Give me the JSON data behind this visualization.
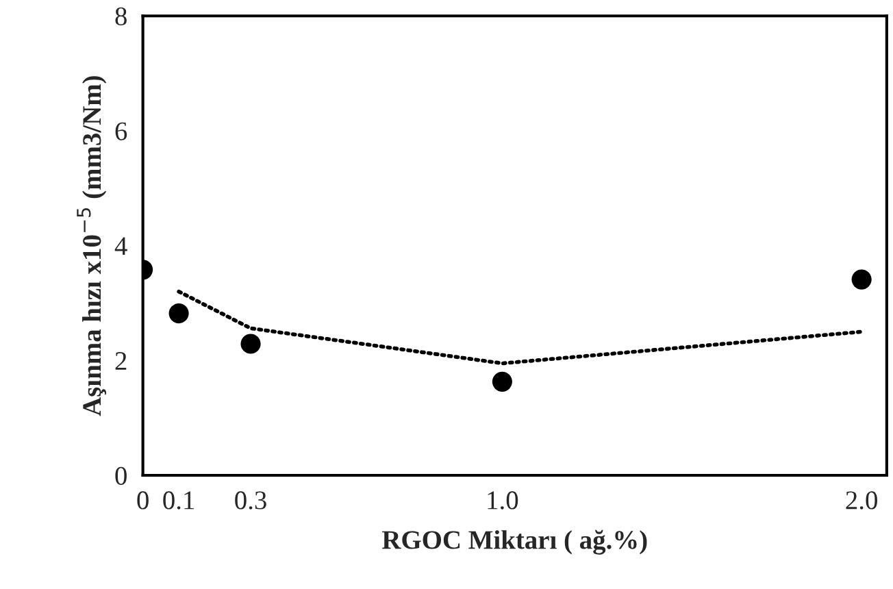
{
  "chart_data": {
    "type": "scatter",
    "xlabel": "RGOC Miktarı ( ağ.%)",
    "ylabel": "Aşınma hızı x10$^{−5}$ (mm3/Nm)",
    "series": [
      {
        "color": "#000000",
        "marker": "circle",
        "x": [
          0,
          0.1,
          0.3,
          1.0,
          2.0
        ],
        "values": [
          3.58,
          2.82,
          2.29,
          1.63,
          3.41
        ]
      },
      {
        "type": "line",
        "color": "#000000",
        "marker": "none",
        "line_style": "dotted",
        "x": [
          0.1,
          0.3,
          1.0,
          2.0
        ],
        "values": [
          3.2,
          2.56,
          1.95,
          2.5
        ]
      }
    ],
    "xlim": [
      0,
      2.07
    ],
    "xticks": [
      0,
      0.1,
      0.3,
      {
        "value": 1.0,
        "label": "1.0"
      },
      {
        "value": 2.0,
        "label": "2.0"
      }
    ],
    "ylim": [
      0,
      8
    ],
    "yticks": [
      0,
      2,
      4,
      6,
      8
    ],
    "grid": false
  }
}
